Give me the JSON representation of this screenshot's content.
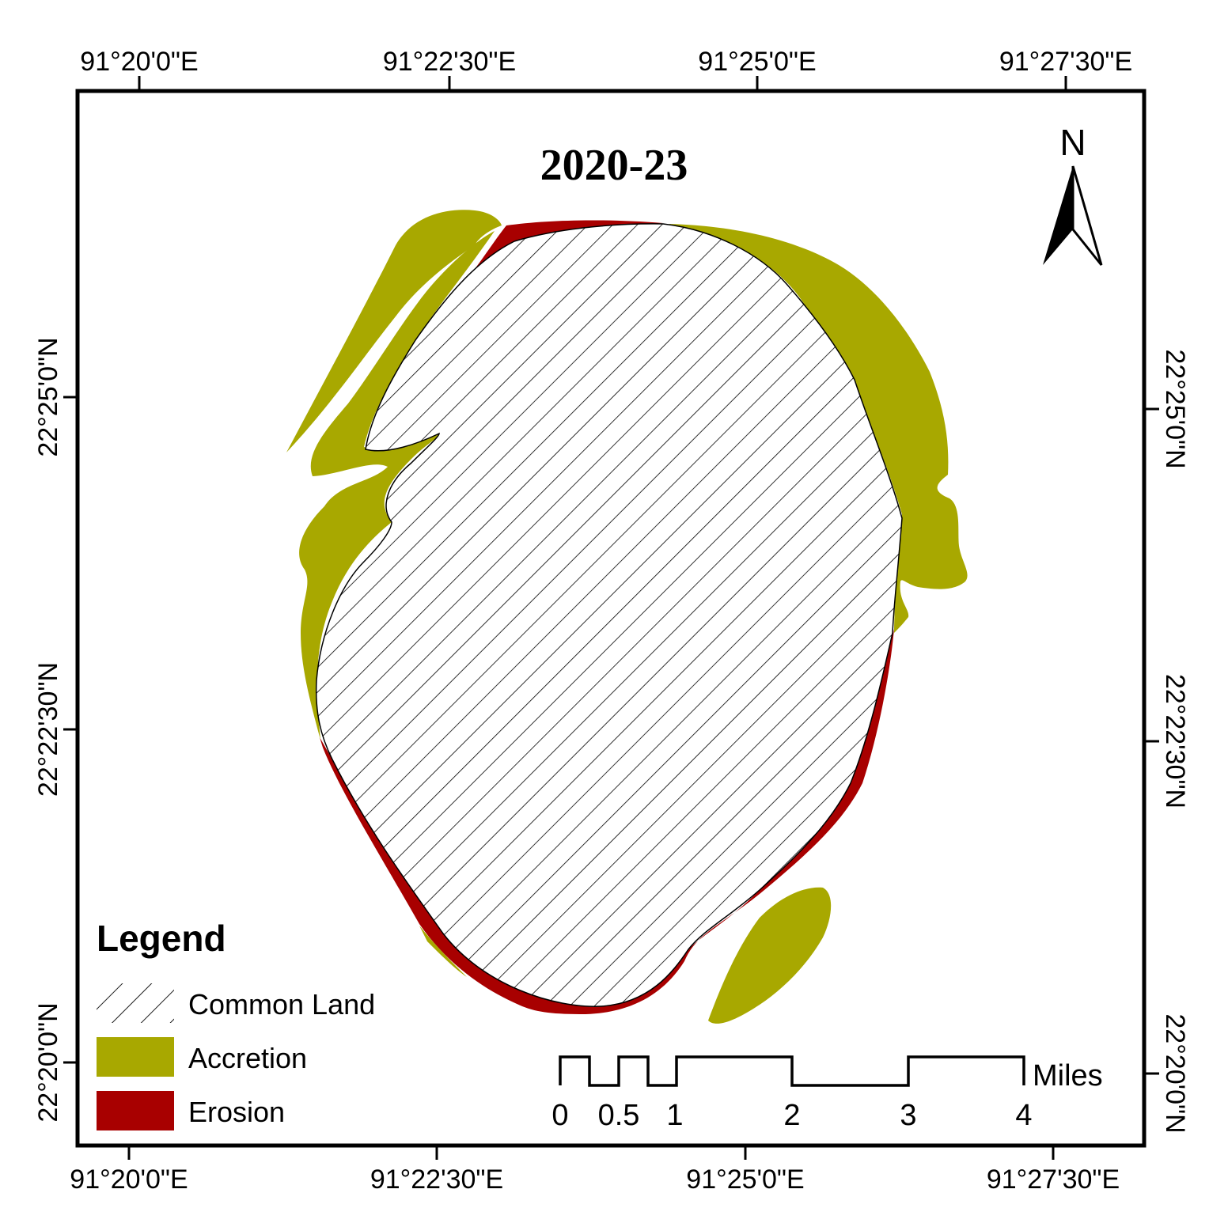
{
  "title": "2020-23",
  "colors": {
    "accretion": "#a8a800",
    "erosion": "#a80000",
    "frame": "#000000",
    "background": "#ffffff"
  },
  "coordinates": {
    "top": [
      "91°20'0\"E",
      "91°22'30\"E",
      "91°25'0\"E",
      "91°27'30\"E"
    ],
    "bottom": [
      "91°20'0\"E",
      "91°22'30\"E",
      "91°25'0\"E",
      "91°27'30\"E"
    ],
    "left": [
      "22°25'0\"N",
      "22°22'30\"N",
      "22°20'0\"N"
    ],
    "right": [
      "22°25'0\"N",
      "22°22'30\"N",
      "22°20'0\"N"
    ]
  },
  "north_arrow": {
    "label": "N"
  },
  "legend": {
    "title": "Legend",
    "items": [
      {
        "label": "Common Land",
        "pattern": "hatch"
      },
      {
        "label": "Accretion",
        "color": "#a8a800"
      },
      {
        "label": "Erosion",
        "color": "#a80000"
      }
    ]
  },
  "scale_bar": {
    "unit": "Miles",
    "ticks": [
      "0",
      "0.5",
      "1",
      "2",
      "3",
      "4"
    ]
  }
}
